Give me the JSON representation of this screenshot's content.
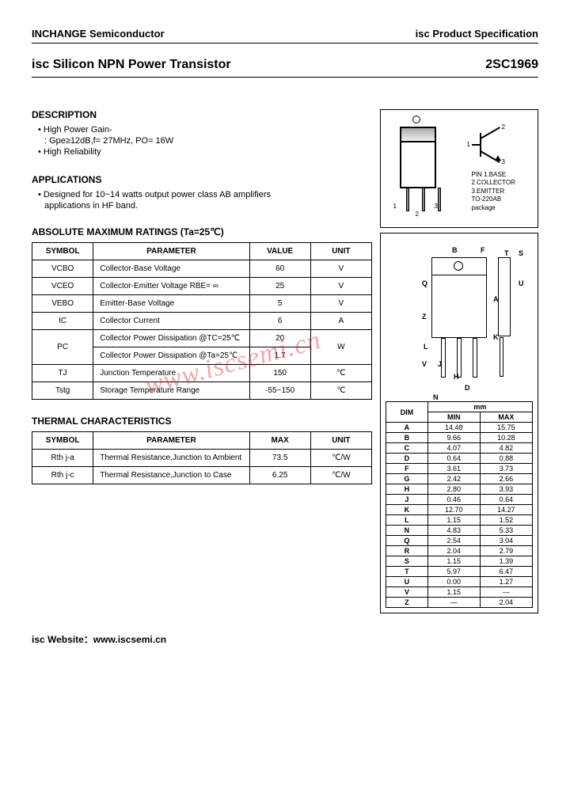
{
  "header": {
    "company": "INCHANGE Semiconductor",
    "spec": "isc Product Specification"
  },
  "title": {
    "product": "isc Silicon NPN Power Transistor",
    "part": "2SC1969"
  },
  "description": {
    "heading": "DESCRIPTION",
    "items": [
      "• High Power Gain-",
      ": Gpe≥12dB,f= 27MHz, PO= 16W",
      "• High Reliability"
    ]
  },
  "applications": {
    "heading": "APPLICATIONS",
    "text1": "• Designed for 10~14 watts output power class AB amplifiers",
    "text2": "applications in HF band."
  },
  "ratings": {
    "heading": "ABSOLUTE MAXIMUM RATINGS (Ta=25℃)",
    "cols": [
      "SYMBOL",
      "PARAMETER",
      "VALUE",
      "UNIT"
    ],
    "rows": [
      {
        "sym": "VCBO",
        "param": "Collector-Base Voltage",
        "val": "60",
        "unit": "V"
      },
      {
        "sym": "VCEO",
        "param": "Collector-Emitter Voltage RBE= ∞",
        "val": "25",
        "unit": "V"
      },
      {
        "sym": "VEBO",
        "param": "Emitter-Base Voltage",
        "val": "5",
        "unit": "V"
      },
      {
        "sym": "IC",
        "param": "Collector Current",
        "val": "6",
        "unit": "A"
      }
    ],
    "pc": {
      "sym": "PC",
      "param1": "Collector Power Dissipation @TC=25℃",
      "val1": "20",
      "param2": "Collector Power Dissipation @Ta=25℃",
      "val2": "1.7",
      "unit": "W"
    },
    "tail": [
      {
        "sym": "TJ",
        "param": "Junction Temperature",
        "val": "150",
        "unit": "℃"
      },
      {
        "sym": "Tstg",
        "param": "Storage Temperature Range",
        "val": "-55~150",
        "unit": "℃"
      }
    ]
  },
  "thermal": {
    "heading": "THERMAL CHARACTERISTICS",
    "cols": [
      "SYMBOL",
      "PARAMETER",
      "MAX",
      "UNIT"
    ],
    "rows": [
      {
        "sym": "Rth j-a",
        "param": "Thermal Resistance,Junction to Ambient",
        "val": "73.5",
        "unit": "℃/W"
      },
      {
        "sym": "Rth j-c",
        "param": "Thermal Resistance,Junction to Case",
        "val": "6.25",
        "unit": "℃/W"
      }
    ]
  },
  "package": {
    "pins": "PIN 1.BASE\n2.COLLECTOR\n3.EMITTER\nTO-220AB package",
    "num1": "1",
    "num2": "2",
    "num3": "3"
  },
  "dims": {
    "hdr_dim": "DIM",
    "hdr_mm": "mm",
    "hdr_min": "MIN",
    "hdr_max": "MAX",
    "labels": {
      "B": "B",
      "F": "F",
      "T": "T",
      "S": "S",
      "Q": "Q",
      "A": "A",
      "U": "U",
      "K": "K",
      "L": "L",
      "V": "V",
      "J": "J",
      "H": "H",
      "D": "D",
      "N": "N",
      "Z": "Z"
    },
    "rows": [
      {
        "d": "A",
        "min": "14.48",
        "max": "15.75"
      },
      {
        "d": "B",
        "min": "9.66",
        "max": "10.28"
      },
      {
        "d": "C",
        "min": "4.07",
        "max": "4.82"
      },
      {
        "d": "D",
        "min": "0.64",
        "max": "0.88"
      },
      {
        "d": "F",
        "min": "3.61",
        "max": "3.73"
      },
      {
        "d": "G",
        "min": "2.42",
        "max": "2.66"
      },
      {
        "d": "H",
        "min": "2.80",
        "max": "3.93"
      },
      {
        "d": "J",
        "min": "0.46",
        "max": "0.64"
      },
      {
        "d": "K",
        "min": "12.70",
        "max": "14.27"
      },
      {
        "d": "L",
        "min": "1.15",
        "max": "1.52"
      },
      {
        "d": "N",
        "min": "4.83",
        "max": "5.33"
      },
      {
        "d": "Q",
        "min": "2.54",
        "max": "3.04"
      },
      {
        "d": "R",
        "min": "2.04",
        "max": "2.79"
      },
      {
        "d": "S",
        "min": "1.15",
        "max": "1.39"
      },
      {
        "d": "T",
        "min": "5.97",
        "max": "6.47"
      },
      {
        "d": "U",
        "min": "0.00",
        "max": "1.27"
      },
      {
        "d": "V",
        "min": "1.15",
        "max": "—"
      },
      {
        "d": "Z",
        "min": "—",
        "max": "2.04"
      }
    ]
  },
  "footer": "isc Website：www.iscsemi.cn",
  "watermark": "www.iscsemi.cn"
}
